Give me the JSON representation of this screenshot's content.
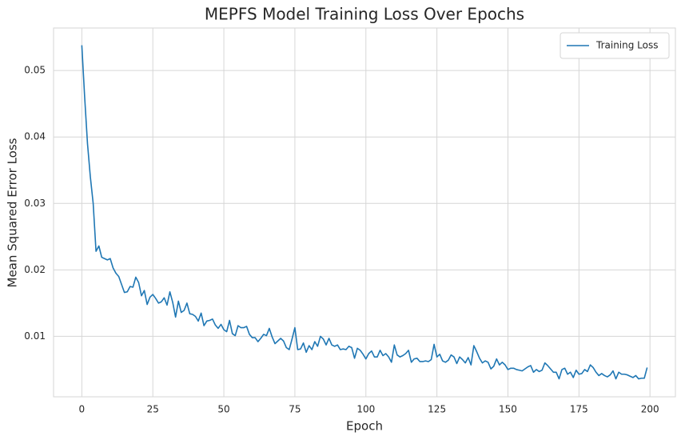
{
  "chart_data": {
    "type": "line",
    "title": "MEPFS Model Training Loss Over Epochs",
    "x_label": "Epoch",
    "y_label": "Mean Squared Error Loss",
    "x": [
      0,
      1,
      2,
      3,
      4,
      5,
      6,
      7,
      8,
      9,
      10,
      11,
      12,
      13,
      14,
      15,
      16,
      17,
      18,
      19,
      20,
      21,
      22,
      23,
      24,
      25,
      26,
      27,
      28,
      29,
      30,
      31,
      32,
      33,
      34,
      35,
      36,
      37,
      38,
      39,
      40,
      41,
      42,
      43,
      44,
      45,
      46,
      47,
      48,
      49,
      50,
      51,
      52,
      53,
      54,
      55,
      56,
      57,
      58,
      59,
      60,
      61,
      62,
      63,
      64,
      65,
      66,
      67,
      68,
      69,
      70,
      71,
      72,
      73,
      74,
      75,
      76,
      77,
      78,
      79,
      80,
      81,
      82,
      83,
      84,
      85,
      86,
      87,
      88,
      89,
      90,
      91,
      92,
      93,
      94,
      95,
      96,
      97,
      98,
      99,
      100,
      101,
      102,
      103,
      104,
      105,
      106,
      107,
      108,
      109,
      110,
      111,
      112,
      113,
      114,
      115,
      116,
      117,
      118,
      119,
      120,
      121,
      122,
      123,
      124,
      125,
      126,
      127,
      128,
      129,
      130,
      131,
      132,
      133,
      134,
      135,
      136,
      137,
      138,
      139,
      140,
      141,
      142,
      143,
      144,
      145,
      146,
      147,
      148,
      149,
      150,
      151,
      152,
      153,
      154,
      155,
      156,
      157,
      158,
      159,
      160,
      161,
      162,
      163,
      164,
      165,
      166,
      167,
      168,
      169,
      170,
      171,
      172,
      173,
      174,
      175,
      176,
      177,
      178,
      179,
      180,
      181,
      182,
      183,
      184,
      185,
      186,
      187,
      188,
      189,
      190,
      191,
      192,
      193,
      194,
      195,
      196,
      197,
      198,
      199
    ],
    "series": [
      {
        "name": "Training Loss",
        "color": "#1f77b4",
        "values": [
          0.0538,
          0.046,
          0.039,
          0.034,
          0.03,
          0.0228,
          0.0236,
          0.0219,
          0.0217,
          0.0215,
          0.0217,
          0.0203,
          0.0195,
          0.019,
          0.0178,
          0.0166,
          0.0167,
          0.0175,
          0.0174,
          0.0189,
          0.0181,
          0.0161,
          0.0169,
          0.0148,
          0.0159,
          0.0163,
          0.0157,
          0.015,
          0.0152,
          0.0158,
          0.0147,
          0.0167,
          0.0151,
          0.0129,
          0.0153,
          0.0136,
          0.0139,
          0.015,
          0.0134,
          0.0133,
          0.013,
          0.0123,
          0.0135,
          0.0116,
          0.0123,
          0.0124,
          0.0126,
          0.0117,
          0.0112,
          0.0118,
          0.011,
          0.0107,
          0.0124,
          0.0104,
          0.0101,
          0.0116,
          0.0113,
          0.0113,
          0.0115,
          0.0103,
          0.0098,
          0.0098,
          0.0092,
          0.0097,
          0.0103,
          0.0101,
          0.0112,
          0.0099,
          0.0089,
          0.0093,
          0.0097,
          0.0093,
          0.0083,
          0.008,
          0.0096,
          0.0113,
          0.008,
          0.0081,
          0.009,
          0.0076,
          0.0086,
          0.008,
          0.0092,
          0.0085,
          0.01,
          0.0096,
          0.0087,
          0.0097,
          0.0087,
          0.0085,
          0.0087,
          0.008,
          0.0081,
          0.008,
          0.0085,
          0.0083,
          0.0067,
          0.0082,
          0.0079,
          0.0073,
          0.0066,
          0.0074,
          0.0078,
          0.0069,
          0.0069,
          0.0079,
          0.0071,
          0.0074,
          0.0069,
          0.0061,
          0.0087,
          0.0072,
          0.0069,
          0.0071,
          0.0074,
          0.0079,
          0.0061,
          0.0066,
          0.0067,
          0.0062,
          0.0062,
          0.0063,
          0.0062,
          0.0065,
          0.0088,
          0.0069,
          0.0073,
          0.0063,
          0.0061,
          0.0064,
          0.0072,
          0.0069,
          0.0059,
          0.0069,
          0.0065,
          0.006,
          0.0068,
          0.0057,
          0.0086,
          0.0077,
          0.0067,
          0.006,
          0.0063,
          0.0061,
          0.0051,
          0.0055,
          0.0066,
          0.0057,
          0.0061,
          0.0057,
          0.005,
          0.0052,
          0.0052,
          0.005,
          0.0049,
          0.0048,
          0.0051,
          0.0054,
          0.0056,
          0.0046,
          0.005,
          0.0047,
          0.0049,
          0.006,
          0.0056,
          0.0051,
          0.0046,
          0.0046,
          0.0036,
          0.005,
          0.0052,
          0.0043,
          0.0046,
          0.0038,
          0.0049,
          0.0043,
          0.0044,
          0.005,
          0.0047,
          0.0057,
          0.0053,
          0.0046,
          0.0041,
          0.0044,
          0.0041,
          0.0039,
          0.0042,
          0.0048,
          0.0036,
          0.0046,
          0.0043,
          0.0043,
          0.0042,
          0.004,
          0.0038,
          0.0041,
          0.0036,
          0.0037,
          0.0037,
          0.0053
        ]
      }
    ],
    "xlim": [
      -9.95,
      208.95
    ],
    "ylim": [
      0.0009,
      0.0564
    ],
    "xticks": [
      0,
      25,
      50,
      75,
      100,
      125,
      150,
      175,
      200
    ],
    "yticks": [
      0.01,
      0.02,
      0.03,
      0.04,
      0.05
    ],
    "grid": true,
    "legend": "upper right"
  }
}
